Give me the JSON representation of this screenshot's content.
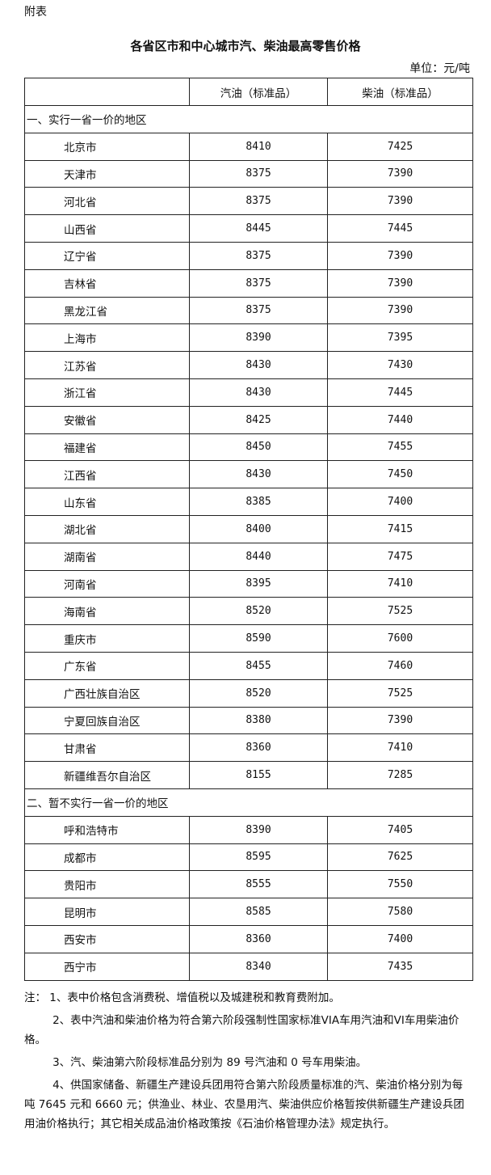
{
  "doc": {
    "label": "附表",
    "title": "各省区市和中心城市汽、柴油最高零售价格",
    "unit": "单位：元/吨"
  },
  "table": {
    "headers": [
      "",
      "汽油（标准品）",
      "柴油（标准品）"
    ],
    "sections": [
      {
        "title": "一、实行一省一价的地区",
        "rows": [
          [
            "北京市",
            "8410",
            "7425"
          ],
          [
            "天津市",
            "8375",
            "7390"
          ],
          [
            "河北省",
            "8375",
            "7390"
          ],
          [
            "山西省",
            "8445",
            "7445"
          ],
          [
            "辽宁省",
            "8375",
            "7390"
          ],
          [
            "吉林省",
            "8375",
            "7390"
          ],
          [
            "黑龙江省",
            "8375",
            "7390"
          ],
          [
            "上海市",
            "8390",
            "7395"
          ],
          [
            "江苏省",
            "8430",
            "7430"
          ],
          [
            "浙江省",
            "8430",
            "7445"
          ],
          [
            "安徽省",
            "8425",
            "7440"
          ],
          [
            "福建省",
            "8450",
            "7455"
          ],
          [
            "江西省",
            "8430",
            "7450"
          ],
          [
            "山东省",
            "8385",
            "7400"
          ],
          [
            "湖北省",
            "8400",
            "7415"
          ],
          [
            "湖南省",
            "8440",
            "7475"
          ],
          [
            "河南省",
            "8395",
            "7410"
          ],
          [
            "海南省",
            "8520",
            "7525"
          ],
          [
            "重庆市",
            "8590",
            "7600"
          ],
          [
            "广东省",
            "8455",
            "7460"
          ],
          [
            "广西壮族自治区",
            "8520",
            "7525"
          ],
          [
            "宁夏回族自治区",
            "8380",
            "7390"
          ],
          [
            "甘肃省",
            "8360",
            "7410"
          ],
          [
            "新疆维吾尔自治区",
            "8155",
            "7285"
          ]
        ]
      },
      {
        "title": "二、暂不实行一省一价的地区",
        "rows": [
          [
            "呼和浩特市",
            "8390",
            "7405"
          ],
          [
            "成都市",
            "8595",
            "7625"
          ],
          [
            "贵阳市",
            "8555",
            "7550"
          ],
          [
            "昆明市",
            "8585",
            "7580"
          ],
          [
            "西安市",
            "8360",
            "7400"
          ],
          [
            "西宁市",
            "8340",
            "7435"
          ]
        ]
      }
    ]
  },
  "notes": [
    "注： 1、表中价格包含消费税、增值税以及城建税和教育费附加。",
    "2、表中汽油和柴油价格为符合第六阶段强制性国家标准VIA车用汽油和VI车用柴油价格。",
    "3、汽、柴油第六阶段标准品分别为 89 号汽油和 0 号车用柴油。",
    "4、供国家储备、新疆生产建设兵团用符合第六阶段质量标准的汽、柴油价格分别为每吨 7645 元和 6660 元；供渔业、林业、农垦用汽、柴油供应价格暂按供新疆生产建设兵团用油价格执行；其它相关成品油价格政策按《石油价格管理办法》规定执行。"
  ]
}
